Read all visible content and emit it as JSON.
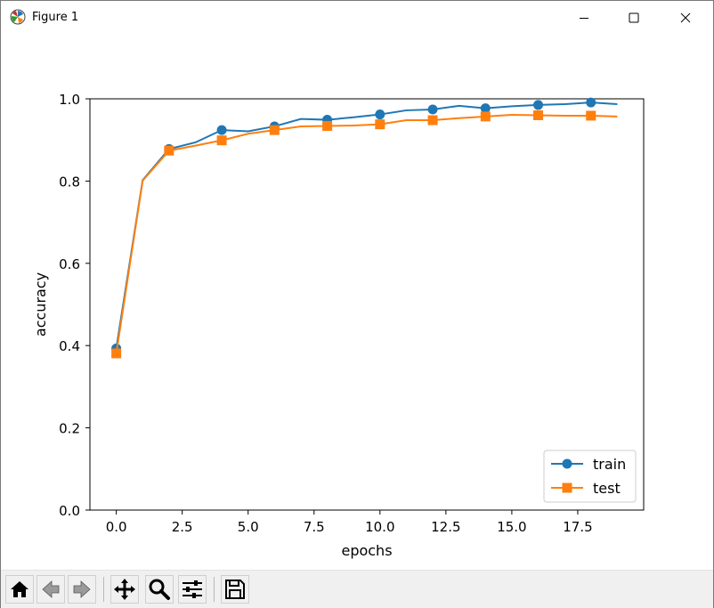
{
  "window": {
    "title": "Figure 1",
    "icon": "matplotlib-logo-icon",
    "controls": [
      "minimize-icon",
      "maximize-icon",
      "close-icon"
    ]
  },
  "toolbar": {
    "buttons": [
      {
        "name": "home-button",
        "icon": "home-icon"
      },
      {
        "name": "back-button",
        "icon": "back-arrow-icon"
      },
      {
        "name": "forward-button",
        "icon": "forward-arrow-icon"
      },
      {
        "name": "pan-button",
        "icon": "move-icon"
      },
      {
        "name": "zoom-button",
        "icon": "magnifier-icon"
      },
      {
        "name": "configure-subplots-button",
        "icon": "sliders-icon"
      },
      {
        "name": "save-button",
        "icon": "floppy-disk-icon"
      }
    ]
  },
  "colors": {
    "train": "#1f77b4",
    "test": "#ff7f0e"
  },
  "chart_data": {
    "type": "line",
    "title": "",
    "xlabel": "epochs",
    "ylabel": "accuracy",
    "xlim": [
      -1.0,
      20.0
    ],
    "ylim": [
      0.0,
      1.0
    ],
    "xticks": [
      0.0,
      2.5,
      5.0,
      7.5,
      10.0,
      12.5,
      15.0,
      17.5
    ],
    "xtick_labels": [
      "0.0",
      "2.5",
      "5.0",
      "7.5",
      "10.0",
      "12.5",
      "15.0",
      "17.5"
    ],
    "yticks": [
      0.0,
      0.2,
      0.4,
      0.6,
      0.8,
      1.0
    ],
    "ytick_labels": [
      "0.0",
      "0.2",
      "0.4",
      "0.6",
      "0.8",
      "1.0"
    ],
    "grid": false,
    "legend_position": "lower-right",
    "x": [
      0,
      1,
      2,
      3,
      4,
      5,
      6,
      7,
      8,
      9,
      10,
      11,
      12,
      13,
      14,
      15,
      16,
      17,
      18,
      19
    ],
    "series": [
      {
        "name": "train",
        "marker": "circle",
        "markevery": 2,
        "values": [
          0.393,
          0.802,
          0.878,
          0.894,
          0.924,
          0.921,
          0.933,
          0.951,
          0.949,
          0.955,
          0.962,
          0.972,
          0.974,
          0.983,
          0.977,
          0.982,
          0.985,
          0.987,
          0.991,
          0.987
        ]
      },
      {
        "name": "test",
        "marker": "square",
        "markevery": 2,
        "values": [
          0.381,
          0.801,
          0.874,
          0.886,
          0.899,
          0.915,
          0.924,
          0.933,
          0.934,
          0.935,
          0.938,
          0.948,
          0.948,
          0.953,
          0.957,
          0.961,
          0.96,
          0.959,
          0.959,
          0.957
        ]
      }
    ]
  }
}
